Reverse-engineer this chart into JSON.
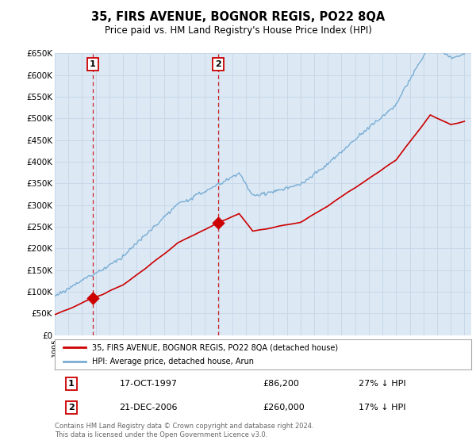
{
  "title": "35, FIRS AVENUE, BOGNOR REGIS, PO22 8QA",
  "subtitle": "Price paid vs. HM Land Registry's House Price Index (HPI)",
  "ylim": [
    0,
    650000
  ],
  "yticks": [
    0,
    50000,
    100000,
    150000,
    200000,
    250000,
    300000,
    350000,
    400000,
    450000,
    500000,
    550000,
    600000,
    650000
  ],
  "ytick_labels": [
    "£0",
    "£50K",
    "£100K",
    "£150K",
    "£200K",
    "£250K",
    "£300K",
    "£350K",
    "£400K",
    "£450K",
    "£500K",
    "£550K",
    "£600K",
    "£650K"
  ],
  "hpi_color": "#7aadd4",
  "price_color": "#cc0000",
  "vline_color": "#cc0000",
  "marker_color": "#cc0000",
  "grid_color": "#c8d8e8",
  "bg_color": "#dce9f5",
  "legend_label1": "35, FIRS AVENUE, BOGNOR REGIS, PO22 8QA (detached house)",
  "legend_label2": "HPI: Average price, detached house, Arun",
  "transaction1_date": 1997.79,
  "transaction1_price": 86200,
  "transaction2_date": 2006.97,
  "transaction2_price": 260000,
  "note1_num": "1",
  "note1_date": "17-OCT-1997",
  "note1_price": "£86,200",
  "note1_hpi": "27% ↓ HPI",
  "note2_num": "2",
  "note2_date": "21-DEC-2006",
  "note2_price": "£260,000",
  "note2_hpi": "17% ↓ HPI",
  "footer": "Contains HM Land Registry data © Crown copyright and database right 2024.\nThis data is licensed under the Open Government Licence v3.0."
}
